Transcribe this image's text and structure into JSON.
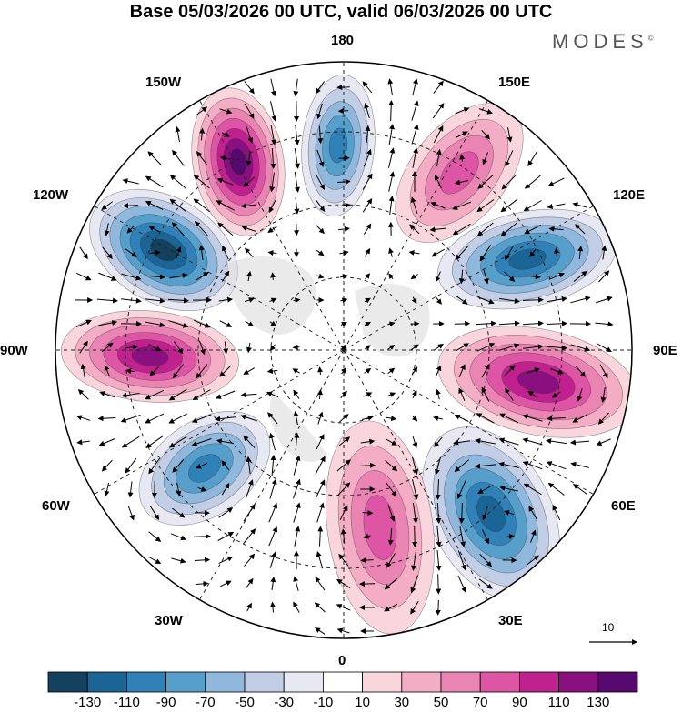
{
  "title": "Base 05/03/2026 00 UTC, valid 06/03/2026 00 UTC",
  "logo": "MODES",
  "logo_mark": "©",
  "longitude_labels": {
    "top": "180",
    "bottom": "0",
    "left": "90W",
    "right": "90E",
    "upper_left_1": "150W",
    "upper_left_2": "120W",
    "lower_left_1": "60W",
    "lower_left_2": "30W",
    "upper_right_1": "150E",
    "upper_right_2": "120E",
    "lower_right_1": "60E",
    "lower_right_2": "30E"
  },
  "vector_scale_label": "10",
  "colorbar": {
    "labels": [
      "-130",
      "-110",
      "-90",
      "-70",
      "-50",
      "-30",
      "-10",
      "10",
      "30",
      "50",
      "70",
      "90",
      "110",
      "130"
    ],
    "colors": [
      "#14415e",
      "#1b6596",
      "#3081b7",
      "#579fcb",
      "#8fb8dc",
      "#c2cde6",
      "#e8e8f3",
      "#ffffff",
      "#f9d6de",
      "#f3adc4",
      "#ea84b3",
      "#df55a6",
      "#c1218f",
      "#8b107f",
      "#57096f"
    ]
  },
  "chart_data": {
    "type": "polar-stereographic anomaly map",
    "title": "Base 05/03/2026 00 UTC, valid 06/03/2026 00 UTC",
    "projection": "north polar stereographic",
    "field": "anomaly (shaded) with flow vectors and contours",
    "color_levels": [
      -130,
      -110,
      -90,
      -70,
      -50,
      -30,
      -10,
      10,
      30,
      50,
      70,
      90,
      110,
      130
    ],
    "anomaly_centers": [
      {
        "region": "near 150W",
        "sign": "positive",
        "peak": 130
      },
      {
        "region": "near 180",
        "sign": "negative",
        "peak": -90
      },
      {
        "region": "near 150E",
        "sign": "positive",
        "peak": 70
      },
      {
        "region": "near 120W",
        "sign": "negative",
        "peak": -130
      },
      {
        "region": "near 120E",
        "sign": "negative",
        "peak": -110
      },
      {
        "region": "near 90W",
        "sign": "positive",
        "peak": 110
      },
      {
        "region": "near 90E",
        "sign": "positive",
        "peak": 110
      },
      {
        "region": "near 60W",
        "sign": "negative",
        "peak": -90
      },
      {
        "region": "near 60E",
        "sign": "negative",
        "peak": -110
      },
      {
        "region": "near 0 (30W-30E)",
        "sign": "positive",
        "peak": 70
      }
    ],
    "vector_reference": 10
  }
}
